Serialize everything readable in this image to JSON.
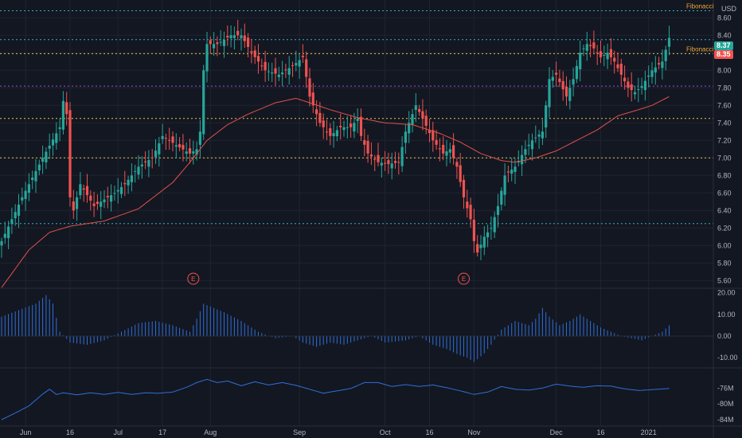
{
  "colors": {
    "background": "#131722",
    "grid": "#1f2330",
    "up": "#26a69a",
    "down": "#ef5350",
    "ma_line": "#e0514a",
    "fib_blue": "#2fb3c8",
    "fib_yellow": "#e8c547",
    "fib_purple": "#9c4ed6",
    "histogram": "#2f6fd6",
    "volume_line": "#2f6fd6",
    "axis_text": "#b2b5be",
    "fib_label": "#f0a830"
  },
  "currency_label": "USD",
  "price_badges": [
    {
      "value": "8.37",
      "color": "#26a69a"
    },
    {
      "value": "8.35",
      "color": "#ef5350"
    }
  ],
  "fib_labels": [
    "Fibonacci",
    "Fibonacci"
  ],
  "earnings_marker": "E",
  "chart_data": {
    "type": "candlestick",
    "x_labels": [
      "Jun",
      "16",
      "Jul",
      "17",
      "Aug",
      "Sep",
      "Oct",
      "16",
      "Nov",
      "Dec",
      "16",
      "2021"
    ],
    "price_axis": {
      "ticks": [
        "8.60",
        "8.40",
        "8.20",
        "8.00",
        "7.80",
        "7.60",
        "7.40",
        "7.20",
        "7.00",
        "6.80",
        "6.60",
        "6.40",
        "6.20",
        "6.00",
        "5.80",
        "5.60"
      ],
      "ylim": [
        5.53,
        8.73
      ]
    },
    "fibonacci_levels": [
      {
        "price": 8.68,
        "color": "#2fb3c8"
      },
      {
        "price": 8.35,
        "color": "#2fb3c8"
      },
      {
        "price": 8.19,
        "color": "#e8c547"
      },
      {
        "price": 7.82,
        "color": "#9c4ed6"
      },
      {
        "price": 7.45,
        "color": "#e8c547"
      },
      {
        "price": 7.0,
        "color": "#e8c547"
      },
      {
        "price": 6.25,
        "color": "#2fb3c8"
      }
    ],
    "price_anchors": [
      [
        0,
        6.05
      ],
      [
        6,
        6.55
      ],
      [
        12,
        7.0
      ],
      [
        17,
        7.35
      ],
      [
        18,
        7.65
      ],
      [
        19,
        7.5
      ],
      [
        20,
        6.55
      ],
      [
        21,
        6.4
      ],
      [
        23,
        6.7
      ],
      [
        27,
        6.45
      ],
      [
        33,
        6.6
      ],
      [
        36,
        6.7
      ],
      [
        40,
        6.9
      ],
      [
        44,
        7.0
      ],
      [
        47,
        7.25
      ],
      [
        52,
        7.12
      ],
      [
        55,
        7.05
      ],
      [
        57,
        7.1
      ],
      [
        58,
        7.3
      ],
      [
        59,
        8.0
      ],
      [
        60,
        8.3
      ],
      [
        63,
        8.3
      ],
      [
        67,
        8.4
      ],
      [
        70,
        8.4
      ],
      [
        73,
        8.2
      ],
      [
        77,
        8.0
      ],
      [
        81,
        7.95
      ],
      [
        85,
        8.05
      ],
      [
        88,
        8.15
      ],
      [
        90,
        7.7
      ],
      [
        93,
        7.4
      ],
      [
        96,
        7.25
      ],
      [
        99,
        7.35
      ],
      [
        102,
        7.35
      ],
      [
        104,
        7.45
      ],
      [
        105,
        7.25
      ],
      [
        107,
        7.05
      ],
      [
        110,
        6.95
      ],
      [
        113,
        6.93
      ],
      [
        116,
        6.95
      ],
      [
        118,
        7.3
      ],
      [
        120,
        7.5
      ],
      [
        121,
        7.6
      ],
      [
        123,
        7.45
      ],
      [
        126,
        7.2
      ],
      [
        129,
        7.05
      ],
      [
        131,
        7.1
      ],
      [
        133,
        6.9
      ],
      [
        135,
        6.55
      ],
      [
        137,
        6.3
      ],
      [
        138,
        6.05
      ],
      [
        139,
        5.92
      ],
      [
        141,
        6.1
      ],
      [
        143,
        6.2
      ],
      [
        145,
        6.45
      ],
      [
        147,
        6.8
      ],
      [
        150,
        6.9
      ],
      [
        153,
        7.1
      ],
      [
        155,
        7.2
      ],
      [
        158,
        7.3
      ],
      [
        160,
        7.9
      ],
      [
        162,
        7.95
      ],
      [
        165,
        7.7
      ],
      [
        167,
        7.9
      ],
      [
        169,
        8.2
      ],
      [
        171,
        8.3
      ],
      [
        173,
        8.25
      ],
      [
        175,
        8.15
      ],
      [
        177,
        8.2
      ],
      [
        179,
        8.1
      ],
      [
        181,
        7.95
      ],
      [
        183,
        7.8
      ],
      [
        185,
        7.75
      ],
      [
        187,
        7.82
      ],
      [
        190,
        8.0
      ],
      [
        193,
        8.1
      ],
      [
        195,
        8.37
      ]
    ],
    "moving_average_anchors": [
      [
        0,
        5.52
      ],
      [
        8,
        5.95
      ],
      [
        14,
        6.15
      ],
      [
        20,
        6.22
      ],
      [
        30,
        6.28
      ],
      [
        40,
        6.42
      ],
      [
        50,
        6.72
      ],
      [
        55,
        6.95
      ],
      [
        60,
        7.2
      ],
      [
        66,
        7.38
      ],
      [
        72,
        7.5
      ],
      [
        80,
        7.63
      ],
      [
        86,
        7.68
      ],
      [
        90,
        7.63
      ],
      [
        96,
        7.55
      ],
      [
        104,
        7.46
      ],
      [
        112,
        7.4
      ],
      [
        120,
        7.38
      ],
      [
        128,
        7.28
      ],
      [
        134,
        7.18
      ],
      [
        140,
        7.05
      ],
      [
        146,
        6.97
      ],
      [
        150,
        6.95
      ],
      [
        156,
        7.0
      ],
      [
        162,
        7.08
      ],
      [
        168,
        7.2
      ],
      [
        174,
        7.32
      ],
      [
        180,
        7.48
      ],
      [
        186,
        7.55
      ],
      [
        190,
        7.6
      ],
      [
        195,
        7.7
      ]
    ],
    "earnings_positions": [
      56,
      135
    ],
    "oscillator": {
      "ticks": [
        "20.00",
        "10.00",
        "0.00",
        "-10.00"
      ],
      "ylim": [
        -14,
        21
      ],
      "anchors": [
        [
          0,
          9
        ],
        [
          5,
          12
        ],
        [
          10,
          15
        ],
        [
          13,
          19
        ],
        [
          15,
          15
        ],
        [
          17,
          2
        ],
        [
          20,
          -3
        ],
        [
          25,
          -4
        ],
        [
          30,
          -2
        ],
        [
          35,
          2
        ],
        [
          40,
          6
        ],
        [
          45,
          7
        ],
        [
          50,
          5
        ],
        [
          55,
          2
        ],
        [
          57,
          8
        ],
        [
          59,
          15
        ],
        [
          62,
          13
        ],
        [
          65,
          11
        ],
        [
          70,
          7
        ],
        [
          75,
          2
        ],
        [
          80,
          -1
        ],
        [
          85,
          0
        ],
        [
          88,
          -3
        ],
        [
          92,
          -5
        ],
        [
          96,
          -3
        ],
        [
          100,
          -4
        ],
        [
          104,
          -2
        ],
        [
          108,
          0
        ],
        [
          112,
          -3
        ],
        [
          118,
          -2
        ],
        [
          122,
          0
        ],
        [
          126,
          -4
        ],
        [
          130,
          -6
        ],
        [
          134,
          -9
        ],
        [
          136,
          -10
        ],
        [
          138,
          -12
        ],
        [
          141,
          -8
        ],
        [
          143,
          -4
        ],
        [
          146,
          3
        ],
        [
          150,
          7
        ],
        [
          154,
          5
        ],
        [
          156,
          8
        ],
        [
          158,
          13
        ],
        [
          160,
          9
        ],
        [
          163,
          5
        ],
        [
          166,
          7
        ],
        [
          169,
          10
        ],
        [
          172,
          7
        ],
        [
          175,
          4
        ],
        [
          178,
          2
        ],
        [
          181,
          0
        ],
        [
          184,
          -1
        ],
        [
          187,
          -2
        ],
        [
          190,
          0
        ],
        [
          193,
          2
        ],
        [
          195,
          5
        ]
      ]
    },
    "volume": {
      "ticks": [
        "-76M",
        "-80M",
        "-84M"
      ],
      "ylim": [
        -84.6,
        -71.5
      ],
      "anchors": [
        [
          0,
          -84
        ],
        [
          4,
          -82.3
        ],
        [
          8,
          -80.5
        ],
        [
          12,
          -77.5
        ],
        [
          14,
          -76.3
        ],
        [
          16,
          -77.6
        ],
        [
          18,
          -77.2
        ],
        [
          22,
          -77.7
        ],
        [
          26,
          -77.2
        ],
        [
          30,
          -77.6
        ],
        [
          34,
          -77.1
        ],
        [
          38,
          -77.6
        ],
        [
          42,
          -77.2
        ],
        [
          46,
          -77.3
        ],
        [
          50,
          -77.0
        ],
        [
          54,
          -75.8
        ],
        [
          57,
          -74.6
        ],
        [
          60,
          -73.8
        ],
        [
          63,
          -74.6
        ],
        [
          66,
          -74.2
        ],
        [
          70,
          -75.4
        ],
        [
          74,
          -74.4
        ],
        [
          78,
          -75.2
        ],
        [
          82,
          -74.6
        ],
        [
          86,
          -75.3
        ],
        [
          90,
          -76.3
        ],
        [
          94,
          -77.3
        ],
        [
          98,
          -76.7
        ],
        [
          102,
          -76.1
        ],
        [
          106,
          -74.6
        ],
        [
          110,
          -74.6
        ],
        [
          114,
          -75.6
        ],
        [
          118,
          -75.1
        ],
        [
          122,
          -75.6
        ],
        [
          126,
          -75.2
        ],
        [
          130,
          -75.9
        ],
        [
          134,
          -76.7
        ],
        [
          138,
          -77.6
        ],
        [
          142,
          -77.0
        ],
        [
          146,
          -75.6
        ],
        [
          150,
          -76.3
        ],
        [
          154,
          -76.5
        ],
        [
          158,
          -76.0
        ],
        [
          162,
          -75.0
        ],
        [
          166,
          -75.5
        ],
        [
          170,
          -75.8
        ],
        [
          174,
          -75.4
        ],
        [
          178,
          -75.5
        ],
        [
          182,
          -76.2
        ],
        [
          186,
          -76.6
        ],
        [
          190,
          -76.4
        ],
        [
          195,
          -76.1
        ]
      ]
    }
  }
}
